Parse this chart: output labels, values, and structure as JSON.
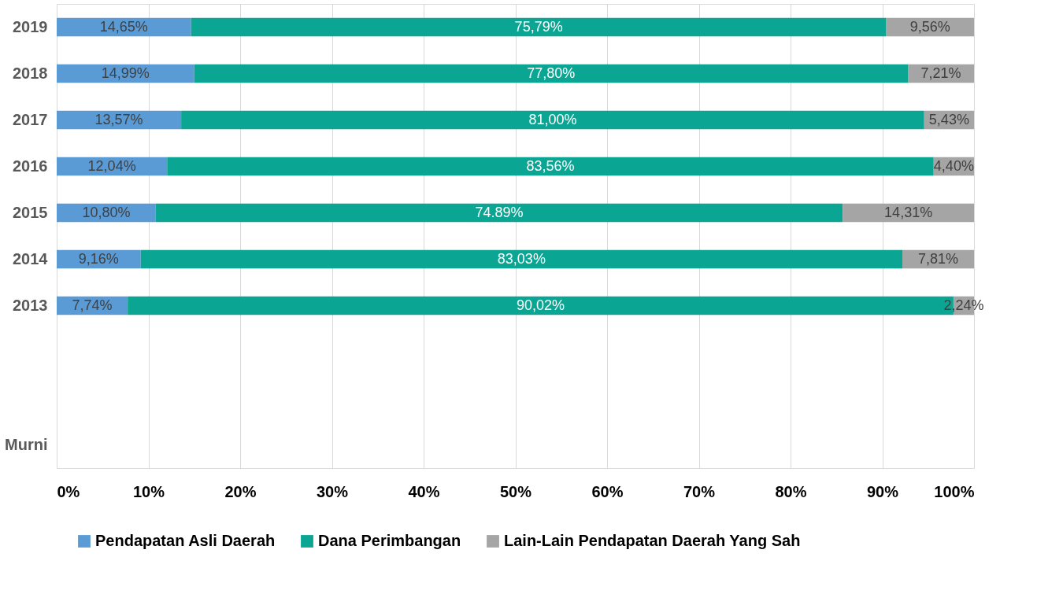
{
  "chart_data": {
    "type": "bar",
    "orientation": "horizontal",
    "stacked": true,
    "categories": [
      "2019",
      "2018",
      "2017",
      "2016",
      "2015",
      "2014",
      "2013",
      null,
      null,
      "Murni"
    ],
    "series": [
      {
        "name": "Pendapatan Asli Daerah",
        "color": "#5b9bd5",
        "values": [
          14.65,
          14.99,
          13.57,
          12.04,
          10.8,
          9.16,
          7.74,
          null,
          null,
          null
        ],
        "value_labels": [
          "14,65%",
          "14,99%",
          "13,57%",
          "12,04%",
          "10,80%",
          "9,16%",
          "7,74%",
          null,
          null,
          null
        ]
      },
      {
        "name": "Dana Perimbangan",
        "color": "#0aa593",
        "values": [
          75.79,
          77.8,
          81.0,
          83.56,
          74.89,
          83.03,
          90.02,
          null,
          null,
          null
        ],
        "value_labels": [
          "75,79%",
          "77,80%",
          "81,00%",
          "83,56%",
          "74.89%",
          "83,03%",
          "90,02%",
          null,
          null,
          null
        ]
      },
      {
        "name": "Lain-Lain Pendapatan Daerah Yang Sah",
        "color": "#a5a5a5",
        "values": [
          9.56,
          7.21,
          5.43,
          4.4,
          14.31,
          7.81,
          2.24,
          null,
          null,
          null
        ],
        "value_labels": [
          "9,56%",
          "7,21%",
          "5,43%",
          "4,40%",
          "14,31%",
          "7,81%",
          "2,24%",
          null,
          null,
          null
        ]
      }
    ],
    "xlim": [
      0,
      100
    ],
    "xticks": [
      {
        "value": 0,
        "label": "0%"
      },
      {
        "value": 10,
        "label": "10%"
      },
      {
        "value": 20,
        "label": "20%"
      },
      {
        "value": 30,
        "label": "30%"
      },
      {
        "value": 40,
        "label": "40%"
      },
      {
        "value": 50,
        "label": "50%"
      },
      {
        "value": 60,
        "label": "60%"
      },
      {
        "value": 70,
        "label": "70%"
      },
      {
        "value": 80,
        "label": "80%"
      },
      {
        "value": 90,
        "label": "90%"
      },
      {
        "value": 100,
        "label": "100%"
      }
    ],
    "grid": "x",
    "legend": "bottom"
  }
}
